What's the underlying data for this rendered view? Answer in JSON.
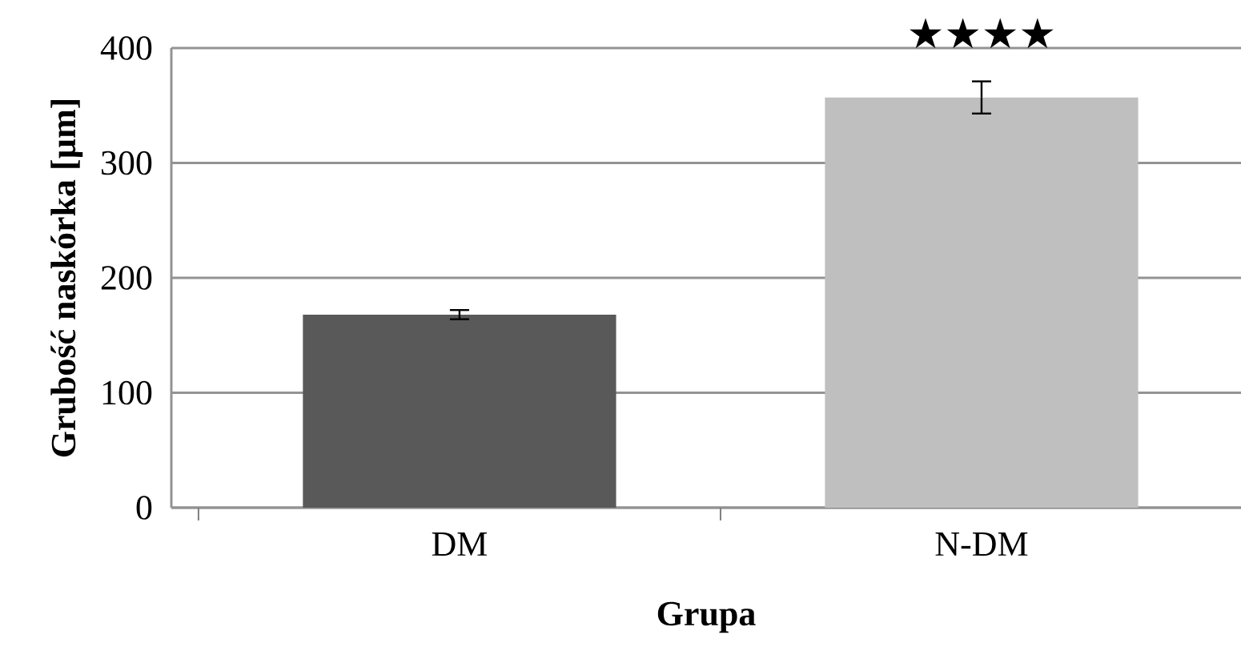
{
  "chart_data": {
    "type": "bar",
    "xlabel": "Grupa",
    "ylabel": "Grubość naskórka [µm]",
    "categories": [
      "DM",
      "N-DM"
    ],
    "values": [
      168,
      357
    ],
    "colors": [
      "#595959",
      "#bfbfbf"
    ],
    "errors": [
      4,
      14
    ],
    "ylim": [
      0,
      400
    ],
    "yticks": [
      0,
      100,
      200,
      300,
      400
    ],
    "grid": "y",
    "annotations": [
      "★★★★"
    ]
  }
}
